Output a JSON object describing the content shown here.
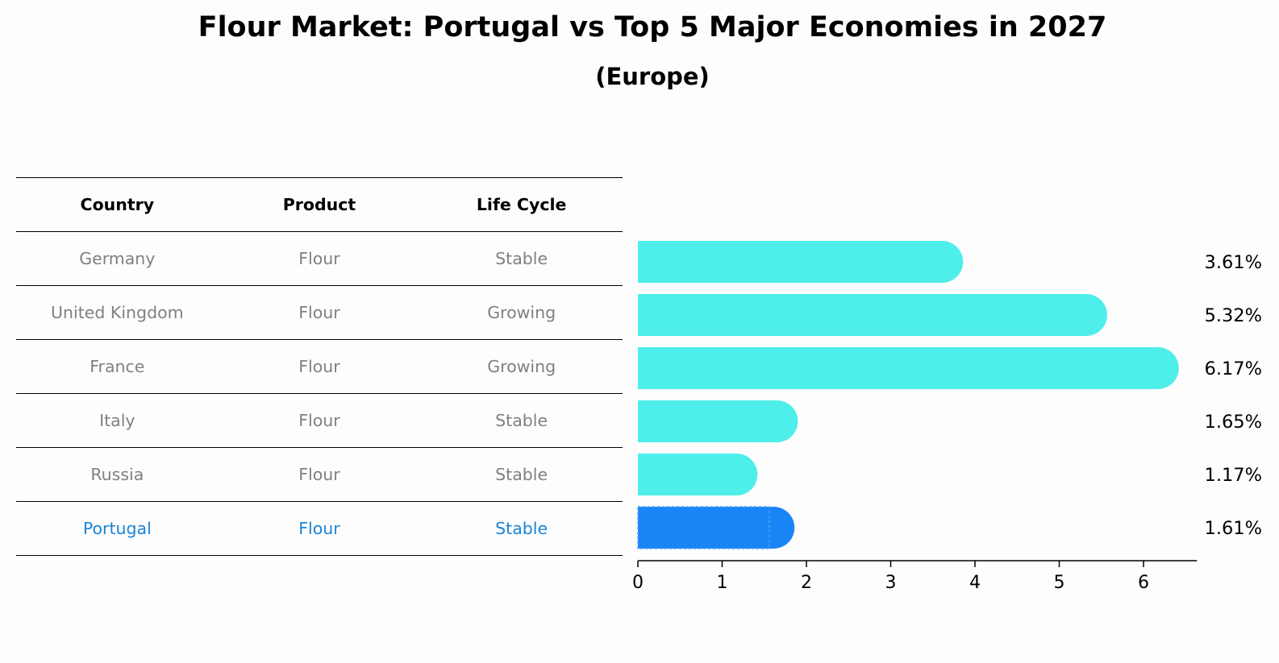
{
  "title": "Flour Market: Portugal vs Top 5 Major Economies in 2027",
  "subtitle": "(Europe)",
  "table": {
    "headers": [
      "Country",
      "Product",
      "Life Cycle"
    ],
    "rows": [
      [
        "Germany",
        "Flour",
        "Stable"
      ],
      [
        "United Kingdom",
        "Flour",
        "Growing"
      ],
      [
        "France",
        "Flour",
        "Growing"
      ],
      [
        "Italy",
        "Flour",
        "Stable"
      ],
      [
        "Russia",
        "Flour",
        "Stable"
      ],
      [
        "Portugal",
        "Flour",
        "Stable"
      ]
    ]
  },
  "chart_data": {
    "type": "bar",
    "orientation": "horizontal",
    "categories": [
      "Germany",
      "United Kingdom",
      "France",
      "Italy",
      "Russia",
      "Portugal"
    ],
    "values": [
      3.61,
      5.32,
      6.17,
      1.65,
      1.17,
      1.61
    ],
    "value_labels": [
      "3.61%",
      "5.32%",
      "6.17%",
      "1.65%",
      "1.17%",
      "1.61%"
    ],
    "highlight": "Portugal",
    "xlim": [
      0,
      6.5
    ],
    "xticks": [
      0,
      1,
      2,
      3,
      4,
      5,
      6
    ],
    "colors": {
      "bar": "#4eeeea",
      "highlight": "#1a85f6",
      "text_muted": "#808080",
      "text_highlight": "#1a85d6"
    }
  }
}
